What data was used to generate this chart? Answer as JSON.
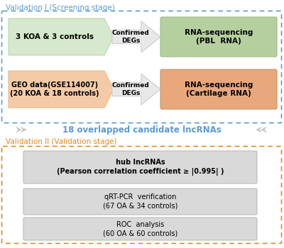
{
  "background_color": "#ffffff",
  "val1_title": "Validation I (Screening stage)",
  "val1_title_color": "#5b9bd5",
  "val2_title": "Validation II (Validation stage)",
  "val2_title_color": "#e08a1e",
  "overlap_text": "18 overlapped candidate lncRNAs",
  "overlap_color": "#5b9bd5",
  "box1_text": "3 KOA & 3 controls",
  "box1_bg": "#d6e8cd",
  "box1_edge": "#c0d8b0",
  "box2_text": "GEO data(GSE114007)\n(20 KOA & 18 controls)",
  "box2_bg": "#f5cba7",
  "box2_edge": "#e8b888",
  "box3_text": "RNA-sequencing\n(PBL  RNA)",
  "box3_bg": "#b5cf9e",
  "box3_edge": "#a0be85",
  "box4_text": "RNA-sequencing\n(Cartilage RNA)",
  "box4_bg": "#e8a87c",
  "box4_edge": "#d09060",
  "arrow_fill": "#e8e8e8",
  "arrow_edge": "#cccccc",
  "arrow1_label": "Confirmed\nDEGs",
  "arrow2_label": "Confirmed\nDEGs",
  "hub_text": "hub lncRNAs\n(Pearson correlation coefficient ≥ |0.995| )",
  "hub_bg": "#d9d9d9",
  "qrt_text": "qRT-PCR  verification\n(67 OA & 34 controls)",
  "qrt_bg": "#d9d9d9",
  "roc_text": "ROC  analysis\n(60 OA & 60 controls)",
  "roc_bg": "#d9d9d9",
  "outer_box1_color": "#5b9bd5",
  "outer_box2_color": "#e08a1e",
  "chevron_color": "#c8c8c8"
}
